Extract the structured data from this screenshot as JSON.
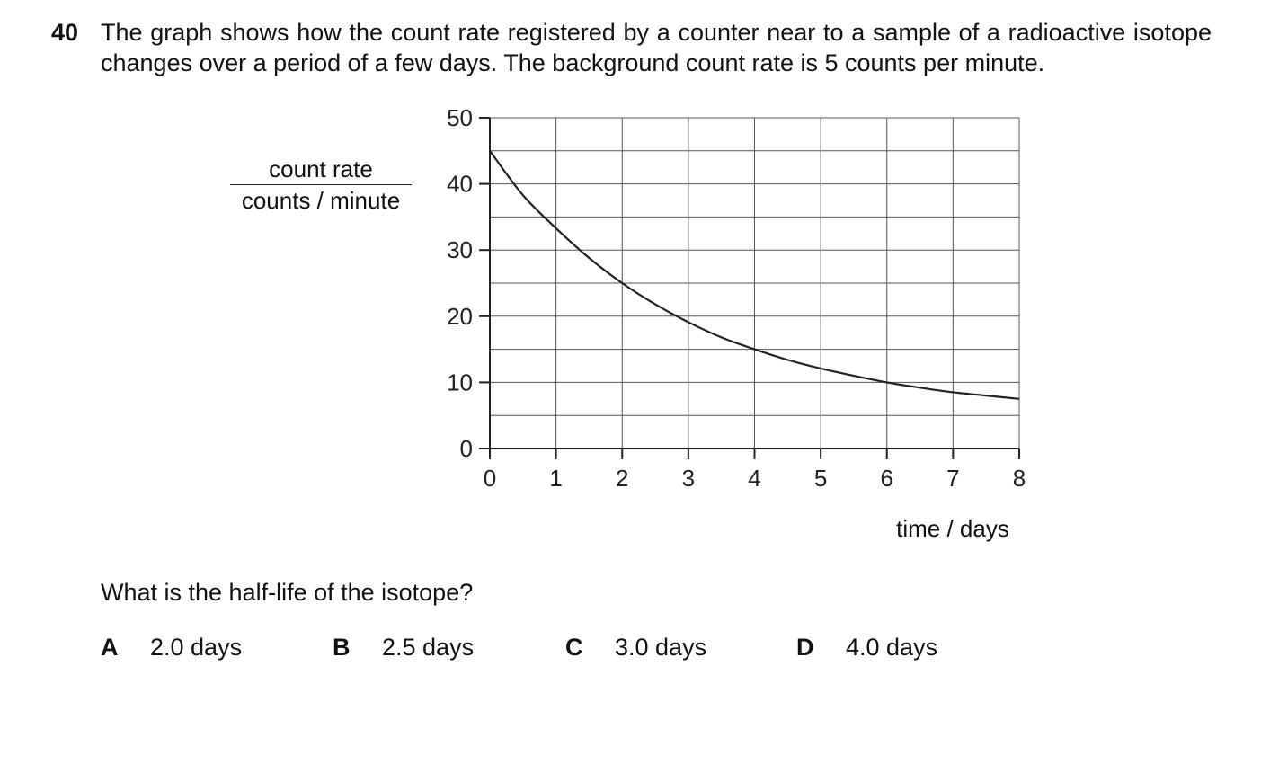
{
  "question": {
    "number": "40",
    "text": "The graph shows how the count rate registered by a counter near to a sample of a radioactive isotope changes over a period of a few days. The background count rate is 5 counts per minute.",
    "prompt": "What is the half-life of the isotope?",
    "options": [
      {
        "letter": "A",
        "text": "2.0 days"
      },
      {
        "letter": "B",
        "text": "2.5 days"
      },
      {
        "letter": "C",
        "text": "3.0 days"
      },
      {
        "letter": "D",
        "text": "4.0 days"
      }
    ]
  },
  "chart_data": {
    "type": "line",
    "title": "",
    "ylabel_numerator": "count rate",
    "ylabel_denominator": "counts / minute",
    "xlabel": "time / days",
    "xlim": [
      0,
      8
    ],
    "ylim": [
      0,
      50
    ],
    "x_ticks": [
      0,
      1,
      2,
      3,
      4,
      5,
      6,
      7,
      8
    ],
    "y_ticks": [
      0,
      10,
      20,
      30,
      40,
      50
    ],
    "minor_grid_y": 5,
    "grid": true,
    "series": [
      {
        "x": [
          0,
          0.5,
          1,
          1.5,
          2,
          2.5,
          3,
          3.5,
          4,
          4.5,
          5,
          5.5,
          6,
          6.5,
          7,
          7.5,
          8
        ],
        "y": [
          45,
          38.3,
          33.3,
          28.8,
          25.0,
          21.8,
          19.1,
          16.8,
          15.0,
          13.4,
          12.1,
          11.0,
          10.0,
          9.2,
          8.5,
          8.0,
          7.5
        ]
      }
    ],
    "line_color": "#222222"
  }
}
